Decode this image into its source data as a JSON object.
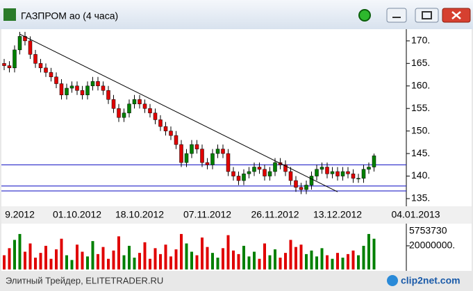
{
  "window": {
    "title": "ГАЗПРОМ ао (4 часа)"
  },
  "footer": {
    "source": "Элитный Трейдер, ELITETRADER.RU",
    "logo": "clip2net.com"
  },
  "chart_data": {
    "type": "candlestick",
    "categories": [
      null,
      null,
      null,
      "9.2012",
      null,
      null,
      null,
      null,
      null,
      null,
      null,
      null,
      null,
      null,
      "01.10.2012",
      null,
      null,
      null,
      null,
      null,
      null,
      null,
      null,
      null,
      null,
      null,
      "18.10.2012",
      null,
      null,
      null,
      null,
      null,
      null,
      null,
      null,
      null,
      null,
      null,
      null,
      "07.11.2012",
      null,
      null,
      null,
      null,
      null,
      null,
      null,
      null,
      null,
      null,
      null,
      null,
      "26.11.2012",
      null,
      null,
      null,
      null,
      null,
      null,
      null,
      null,
      null,
      null,
      null,
      "13.12.2012",
      null,
      null,
      null,
      null,
      null,
      null,
      null,
      null,
      null,
      null,
      null,
      null,
      null,
      null,
      "04.01.2013"
    ],
    "open": [
      165,
      164.5,
      164,
      168,
      171,
      170,
      167,
      165,
      164,
      163,
      162,
      160.5,
      158,
      159.5,
      160,
      159,
      158,
      160,
      161,
      160,
      159,
      157,
      155,
      153,
      154,
      156,
      157,
      156,
      155,
      154,
      152.5,
      151,
      150,
      149,
      147,
      143,
      145,
      147,
      146,
      143,
      142.5,
      145,
      146,
      145,
      141,
      140,
      139,
      140.5,
      141,
      142,
      141.5,
      140,
      141,
      143,
      142.5,
      141,
      139,
      137.5,
      137,
      138,
      140,
      141.5,
      142,
      140.5,
      141,
      140,
      141,
      140.5,
      139.5,
      139.5,
      141.5,
      142,
      null,
      null,
      null,
      null,
      null,
      null,
      null,
      null
    ],
    "high": [
      166,
      165.5,
      169,
      172,
      172,
      171,
      168,
      166,
      165,
      164,
      163,
      161.5,
      160.5,
      161,
      161,
      160,
      161,
      162,
      162,
      161,
      160,
      158,
      156,
      155,
      157,
      158,
      158,
      157,
      156,
      155,
      153.5,
      152,
      151,
      150,
      148,
      146,
      148,
      148,
      147,
      144,
      146,
      147,
      147,
      146,
      142,
      141,
      141.5,
      142,
      143,
      143,
      142.5,
      142,
      144,
      144,
      143.5,
      142,
      140,
      138.5,
      139,
      141,
      142.5,
      143,
      143,
      142,
      142,
      142,
      142,
      141.5,
      140.5,
      142.5,
      143,
      145,
      null,
      null,
      null,
      null,
      null,
      null,
      null,
      null
    ],
    "low": [
      163.5,
      163,
      163,
      167,
      169,
      166,
      164,
      163,
      162,
      161,
      159.5,
      157,
      157,
      158.5,
      158,
      157,
      157,
      159,
      159,
      158,
      156,
      154,
      152,
      152,
      153,
      155,
      155,
      154,
      153,
      151.5,
      150,
      149,
      148,
      146,
      142,
      142,
      144,
      145,
      142,
      141.5,
      141.5,
      144,
      144,
      140,
      139,
      138,
      138,
      139.5,
      140,
      140.5,
      139,
      139,
      140,
      141.5,
      140,
      138,
      136.5,
      136,
      136,
      137,
      139,
      140.5,
      139.5,
      139.5,
      139,
      139,
      139.5,
      138.5,
      138.5,
      138.5,
      140.5,
      141,
      null,
      null,
      null,
      null,
      null,
      null,
      null,
      null
    ],
    "close": [
      164.5,
      164,
      168,
      171,
      170,
      167,
      165,
      164,
      163,
      162,
      160.5,
      158,
      159.5,
      160,
      159,
      158,
      160,
      161,
      160,
      159,
      157,
      155,
      153,
      154,
      156,
      157,
      156,
      155,
      154,
      152.5,
      151,
      150,
      149,
      147,
      143,
      145,
      147,
      146,
      143,
      142.5,
      145,
      146,
      145,
      141,
      140,
      139,
      140.5,
      141,
      142,
      141.5,
      140,
      141,
      143,
      142.5,
      141,
      139,
      137.5,
      137,
      138,
      140,
      141.5,
      142,
      140.5,
      141,
      140,
      141,
      140.5,
      139.5,
      139.5,
      141.5,
      142,
      144.5,
      null,
      null,
      null,
      null,
      null,
      null,
      null,
      null
    ],
    "volume": [
      12000000,
      18000000,
      25000000,
      30000000,
      15000000,
      22000000,
      10000000,
      14000000,
      20000000,
      9000000,
      17000000,
      26000000,
      12000000,
      8000000,
      21000000,
      15000000,
      11000000,
      24000000,
      13000000,
      19000000,
      9000000,
      16000000,
      28000000,
      12000000,
      20000000,
      10000000,
      14000000,
      23000000,
      9000000,
      18000000,
      13000000,
      21000000,
      11000000,
      17000000,
      30000000,
      22000000,
      15000000,
      12000000,
      27000000,
      19000000,
      14000000,
      10000000,
      18000000,
      29000000,
      16000000,
      13000000,
      20000000,
      11000000,
      15000000,
      9000000,
      22000000,
      12000000,
      17000000,
      10000000,
      14000000,
      25000000,
      19000000,
      21000000,
      13000000,
      16000000,
      11000000,
      18000000,
      12000000,
      9000000,
      14000000,
      10000000,
      13000000,
      16000000,
      12000000,
      20000000,
      30000000,
      26000000,
      null,
      null,
      null,
      null,
      null,
      null,
      null,
      null
    ],
    "ylim": [
      133.3,
      172.6
    ],
    "yticks": [
      {
        "value": 135,
        "label": "135."
      },
      {
        "value": 140,
        "label": "140."
      },
      {
        "value": 145,
        "label": "145."
      },
      {
        "value": 150,
        "label": "150."
      },
      {
        "value": 155,
        "label": "155."
      },
      {
        "value": 160,
        "label": "160."
      },
      {
        "value": 165,
        "label": "165."
      },
      {
        "value": 170,
        "label": "170."
      }
    ],
    "vlim": [
      0,
      37000000
    ],
    "vticks": [
      {
        "value": 20000000,
        "label": "20000000."
      }
    ],
    "volume_title": "5753730",
    "hlines": [
      142.5,
      137.8,
      136.7
    ],
    "hline_color": "#2323c8",
    "trendline": {
      "x": [
        3,
        64
      ],
      "y": [
        171.5,
        136.5
      ]
    },
    "up_color": "#008000",
    "down_color": "#e00000"
  }
}
